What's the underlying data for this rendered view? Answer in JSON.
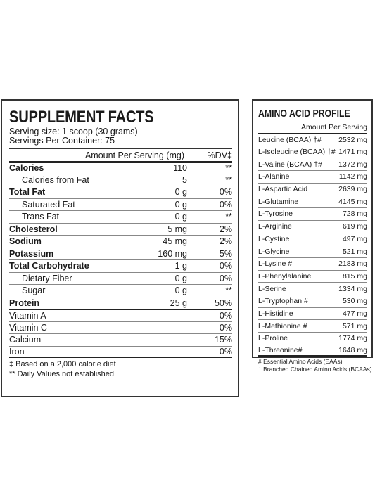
{
  "supplement_facts": {
    "title": "SUPPLEMENT FACTS",
    "serving_size": "Serving size: 1 scoop (30 grams)",
    "servings_per_container": "Servings Per Container: 75",
    "header": {
      "amount": "Amount Per Serving (mg)",
      "dv": "%DV‡"
    },
    "rows": [
      {
        "label": "Calories",
        "amount": "110",
        "dv": "**"
      },
      {
        "label": "Calories from Fat",
        "amount": "5",
        "dv": "**"
      },
      {
        "label": "Total Fat",
        "amount": "0 g",
        "dv": "0%"
      },
      {
        "label": "Saturated Fat",
        "amount": "0 g",
        "dv": "0%"
      },
      {
        "label": "Trans Fat",
        "amount": "0 g",
        "dv": "**"
      },
      {
        "label": "Cholesterol",
        "amount": "5 mg",
        "dv": "2%"
      },
      {
        "label": "Sodium",
        "amount": "45 mg",
        "dv": "2%"
      },
      {
        "label": "Potassium",
        "amount": "160 mg",
        "dv": "5%"
      },
      {
        "label": "Total Carbohydrate",
        "amount": "1 g",
        "dv": "0%"
      },
      {
        "label": "Dietary Fiber",
        "amount": "0 g",
        "dv": "0%"
      },
      {
        "label": "Sugar",
        "amount": "0 g",
        "dv": "**"
      },
      {
        "label": "Protein",
        "amount": "25 g",
        "dv": "50%"
      },
      {
        "label": "Vitamin A",
        "amount": "",
        "dv": "0%"
      },
      {
        "label": "Vitamin C",
        "amount": "",
        "dv": "0%"
      },
      {
        "label": "Calcium",
        "amount": "",
        "dv": "15%"
      },
      {
        "label": "Iron",
        "amount": "",
        "dv": "0%"
      }
    ],
    "footnotes": [
      "‡ Based on a 2,000 calorie diet",
      "** Daily Values not established"
    ]
  },
  "amino_acid_profile": {
    "title": "AMINO ACID PROFILE",
    "header": "Amount Per Serving",
    "rows": [
      {
        "label": "Leucine (BCAA) †#",
        "amount": "2532 mg"
      },
      {
        "label": "L-Isoleucine (BCAA) †#",
        "amount": "1471 mg"
      },
      {
        "label": "L-Valine (BCAA) †#",
        "amount": "1372 mg"
      },
      {
        "label": "L-Alanine",
        "amount": "1142 mg"
      },
      {
        "label": "L-Aspartic Acid",
        "amount": "2639 mg"
      },
      {
        "label": "L-Glutamine",
        "amount": "4145 mg"
      },
      {
        "label": "L-Tyrosine",
        "amount": "728 mg"
      },
      {
        "label": "L-Arginine",
        "amount": "619 mg"
      },
      {
        "label": "L-Cystine",
        "amount": "497 mg"
      },
      {
        "label": "L-Glycine",
        "amount": "521 mg"
      },
      {
        "label": "L-Lysine #",
        "amount": "2183 mg"
      },
      {
        "label": "L-Phenylalanine",
        "amount": "815 mg"
      },
      {
        "label": "L-Serine",
        "amount": "1334 mg"
      },
      {
        "label": "L-Tryptophan #",
        "amount": "530 mg"
      },
      {
        "label": "L-Histidine",
        "amount": "477 mg"
      },
      {
        "label": "L-Methionine #",
        "amount": "571 mg"
      },
      {
        "label": "L-Proline",
        "amount": "1774 mg"
      },
      {
        "label": "L-Threonine#",
        "amount": "1648 mg"
      }
    ],
    "footnotes": [
      "# Essential Amino Acids (EAAs)",
      "† Branched Chained Amino Acids (BCAAs)"
    ]
  }
}
